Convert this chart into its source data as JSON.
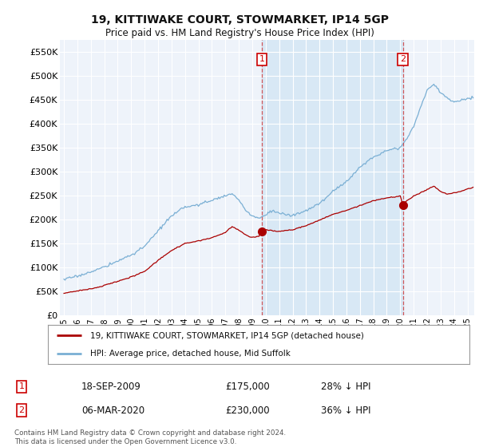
{
  "title": "19, KITTIWAKE COURT, STOWMARKET, IP14 5GP",
  "subtitle": "Price paid vs. HM Land Registry's House Price Index (HPI)",
  "ylabel_ticks": [
    "£0",
    "£50K",
    "£100K",
    "£150K",
    "£200K",
    "£250K",
    "£300K",
    "£350K",
    "£400K",
    "£450K",
    "£500K",
    "£550K"
  ],
  "ytick_values": [
    0,
    50000,
    100000,
    150000,
    200000,
    250000,
    300000,
    350000,
    400000,
    450000,
    500000,
    550000
  ],
  "ylim": [
    0,
    575000
  ],
  "xlim_left": 1994.7,
  "xlim_right": 2025.5,
  "legend_line1": "19, KITTIWAKE COURT, STOWMARKET, IP14 5GP (detached house)",
  "legend_line2": "HPI: Average price, detached house, Mid Suffolk",
  "vline1_x": 2009.72,
  "vline2_x": 2020.19,
  "sale1_x": 2009.72,
  "sale1_y": 175000,
  "sale2_x": 2020.19,
  "sale2_y": 230000,
  "red_line_color": "#aa0000",
  "blue_line_color": "#7aafd4",
  "shade_color": "#d8e8f5",
  "copyright_text": "Contains HM Land Registry data © Crown copyright and database right 2024.\nThis data is licensed under the Open Government Licence v3.0.",
  "background_color": "#ffffff",
  "plot_bg_color": "#eef3fa",
  "grid_color": "#ffffff"
}
